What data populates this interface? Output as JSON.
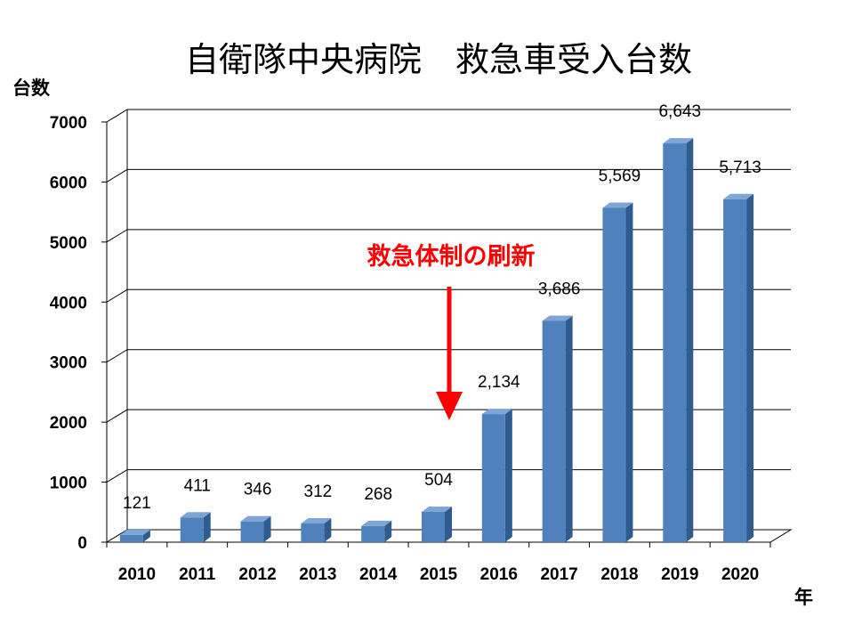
{
  "chart_data": {
    "type": "bar",
    "title": "自衛隊中央病院　救急車受入台数",
    "ylabel": "台数",
    "xlabel": "年",
    "categories": [
      "2010",
      "2011",
      "2012",
      "2013",
      "2014",
      "2015",
      "2016",
      "2017",
      "2018",
      "2019",
      "2020"
    ],
    "values": [
      121,
      411,
      346,
      312,
      268,
      504,
      2134,
      3686,
      5569,
      6643,
      5713
    ],
    "data_labels": [
      "121",
      "411",
      "346",
      "312",
      "268",
      "504",
      "2,134",
      "3,686",
      "5,569",
      "6,643",
      "5,713"
    ],
    "yticks": [
      "0",
      "1000",
      "2000",
      "3000",
      "4000",
      "5000",
      "6000",
      "7000"
    ],
    "ylim": [
      0,
      7000
    ],
    "grid": true,
    "legend": "none",
    "style": "3d-column",
    "annotation": {
      "text": "救急体制の刷新",
      "color": "#ff0000",
      "points_to": "2015"
    },
    "colors": {
      "bar_front": "#4f81bd",
      "bar_side": "#2f5b8f",
      "bar_top": "#7fa5d6"
    }
  }
}
